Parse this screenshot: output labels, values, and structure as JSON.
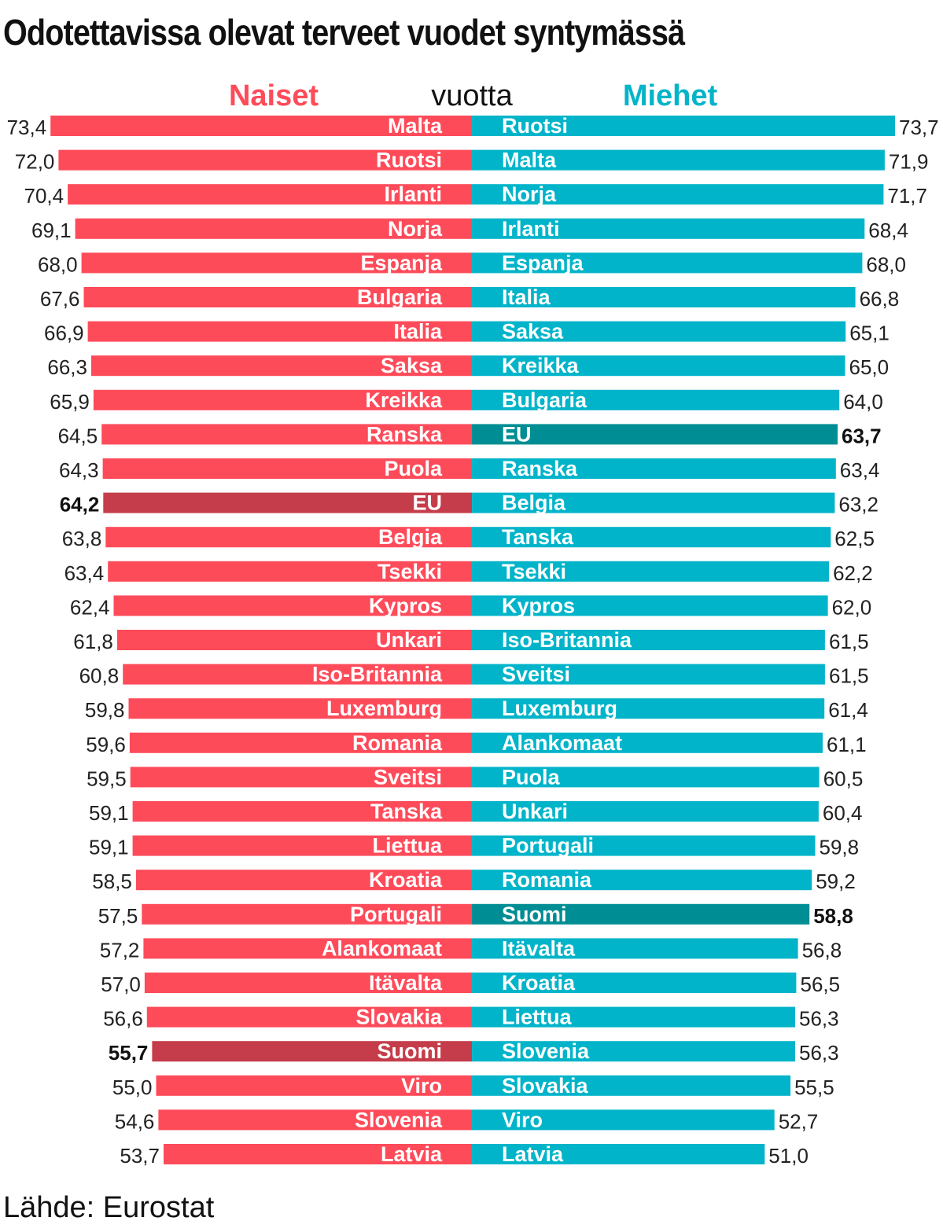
{
  "title": "Odotettavissa olevat terveet vuodet syntymässä",
  "source": "Lähde: Eurostat",
  "colors": {
    "women": "#fe4b5a",
    "women_highlight": "#c53d4a",
    "men": "#02b4c9",
    "men_highlight": "#018d94",
    "women_header": "#fe4b5a",
    "men_header": "#02b4c9"
  },
  "chart_data": {
    "type": "bar",
    "title": "Odotettavissa olevat terveet vuodet syntymässä",
    "unit_label": "vuotta",
    "scale_max": 74,
    "highlighted": [
      "EU",
      "Suomi"
    ],
    "series": [
      {
        "name": "Naiset",
        "side": "left",
        "countries": [
          "Malta",
          "Ruotsi",
          "Irlanti",
          "Norja",
          "Espanja",
          "Bulgaria",
          "Italia",
          "Saksa",
          "Kreikka",
          "Ranska",
          "Puola",
          "EU",
          "Belgia",
          "Tsekki",
          "Kypros",
          "Unkari",
          "Iso-Britannia",
          "Luxemburg",
          "Romania",
          "Sveitsi",
          "Tanska",
          "Liettua",
          "Kroatia",
          "Portugali",
          "Alankomaat",
          "Itävalta",
          "Slovakia",
          "Suomi",
          "Viro",
          "Slovenia",
          "Latvia"
        ],
        "values": [
          73.4,
          72.0,
          70.4,
          69.1,
          68.0,
          67.6,
          66.9,
          66.3,
          65.9,
          64.5,
          64.3,
          64.2,
          63.8,
          63.4,
          62.4,
          61.8,
          60.8,
          59.8,
          59.6,
          59.5,
          59.1,
          59.1,
          58.5,
          57.5,
          57.2,
          57.0,
          56.6,
          55.7,
          55.0,
          54.6,
          53.7
        ],
        "value_labels": [
          "73,4",
          "72,0",
          "70,4",
          "69,1",
          "68,0",
          "67,6",
          "66,9",
          "66,3",
          "65,9",
          "64,5",
          "64,3",
          "64,2",
          "63,8",
          "63,4",
          "62,4",
          "61,8",
          "60,8",
          "59,8",
          "59,6",
          "59,5",
          "59,1",
          "59,1",
          "58,5",
          "57,5",
          "57,2",
          "57,0",
          "56,6",
          "55,7",
          "55,0",
          "54,6",
          "53,7"
        ]
      },
      {
        "name": "Miehet",
        "side": "right",
        "countries": [
          "Ruotsi",
          "Malta",
          "Norja",
          "Irlanti",
          "Espanja",
          "Italia",
          "Saksa",
          "Kreikka",
          "Bulgaria",
          "EU",
          "Ranska",
          "Belgia",
          "Tanska",
          "Tsekki",
          "Kypros",
          "Iso-Britannia",
          "Sveitsi",
          "Luxemburg",
          "Alankomaat",
          "Puola",
          "Unkari",
          "Portugali",
          "Romania",
          "Suomi",
          "Itävalta",
          "Kroatia",
          "Liettua",
          "Slovenia",
          "Slovakia",
          "Viro",
          "Latvia"
        ],
        "values": [
          73.7,
          71.9,
          71.7,
          68.4,
          68.0,
          66.8,
          65.1,
          65.0,
          64.0,
          63.7,
          63.4,
          63.2,
          62.5,
          62.2,
          62.0,
          61.5,
          61.5,
          61.4,
          61.1,
          60.5,
          60.4,
          59.8,
          59.2,
          58.8,
          56.8,
          56.5,
          56.3,
          56.3,
          55.5,
          52.7,
          51.0
        ],
        "value_labels": [
          "73,7",
          "71,9",
          "71,7",
          "68,4",
          "68,0",
          "66,8",
          "65,1",
          "65,0",
          "64,0",
          "63,7",
          "63,4",
          "63,2",
          "62,5",
          "62,2",
          "62,0",
          "61,5",
          "61,5",
          "61,4",
          "61,1",
          "60,5",
          "60,4",
          "59,8",
          "59,2",
          "58,8",
          "56,8",
          "56,5",
          "56,3",
          "56,3",
          "55,5",
          "52,7",
          "51,0"
        ]
      }
    ]
  }
}
